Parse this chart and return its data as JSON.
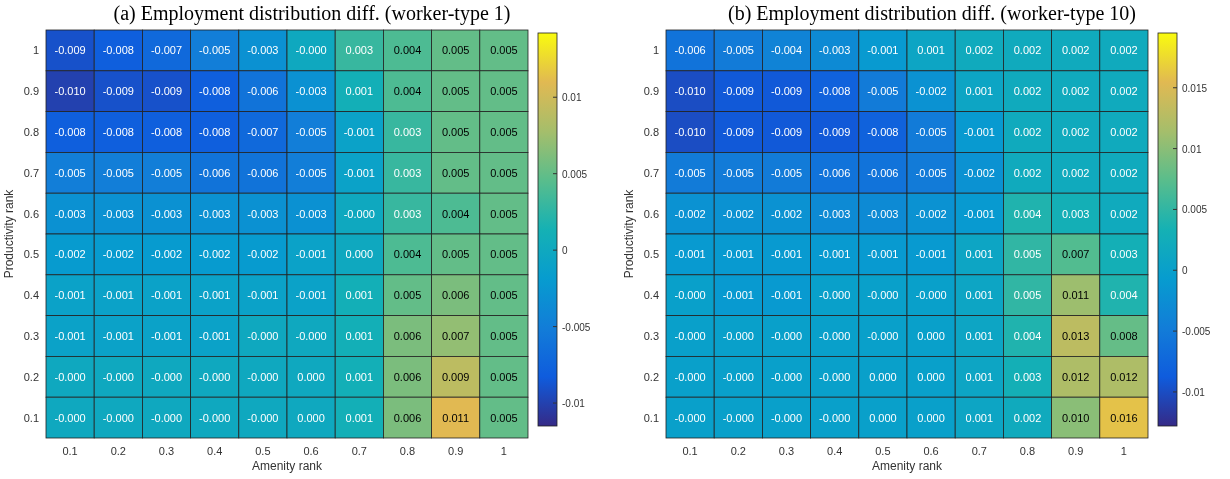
{
  "chart_data": [
    {
      "type": "heatmap",
      "title": "(a) Employment distribution diff. (worker-type 1)",
      "xlabel": "Amenity rank",
      "ylabel": "Productivity rank",
      "categories": [
        "0.1",
        "0.2",
        "0.3",
        "0.4",
        "0.5",
        "0.6",
        "0.7",
        "0.8",
        "0.9",
        "1"
      ],
      "y_categories": [
        "1",
        "0.9",
        "0.8",
        "0.7",
        "0.6",
        "0.5",
        "0.4",
        "0.3",
        "0.2",
        "0.1"
      ],
      "cells": [
        [
          -0.009,
          -0.008,
          -0.007,
          -0.005,
          -0.003,
          0,
          0.003,
          0.004,
          0.005,
          0.005
        ],
        [
          -0.01,
          -0.009,
          -0.009,
          -0.008,
          -0.006,
          -0.003,
          0.001,
          0.004,
          0.005,
          0.005
        ],
        [
          -0.008,
          -0.008,
          -0.008,
          -0.008,
          -0.007,
          -0.005,
          -0.001,
          0.003,
          0.005,
          0.005
        ],
        [
          -0.005,
          -0.005,
          -0.005,
          -0.006,
          -0.006,
          -0.005,
          -0.001,
          0.003,
          0.005,
          0.005
        ],
        [
          -0.003,
          -0.003,
          -0.003,
          -0.003,
          -0.003,
          -0.003,
          0,
          0.003,
          0.004,
          0.005
        ],
        [
          -0.002,
          -0.002,
          -0.002,
          -0.002,
          -0.002,
          -0.001,
          0,
          0.004,
          0.005,
          0.005
        ],
        [
          -0.001,
          -0.001,
          -0.001,
          -0.001,
          -0.001,
          -0.001,
          0.001,
          0.005,
          0.006,
          0.005
        ],
        [
          -0.001,
          -0.001,
          -0.001,
          -0.001,
          0,
          0,
          0.001,
          0.006,
          0.007,
          0.005
        ],
        [
          0,
          0,
          0,
          0,
          0,
          0,
          0.001,
          0.006,
          0.009,
          0.005
        ],
        [
          0,
          0,
          0,
          0,
          0,
          0,
          0.001,
          0.006,
          0.011,
          0.005
        ]
      ],
      "cell_labels": [
        [
          "-0.009",
          "-0.008",
          "-0.007",
          "-0.005",
          "-0.003",
          "-0.000",
          "0.003",
          "0.004",
          "0.005",
          "0.005"
        ],
        [
          "-0.010",
          "-0.009",
          "-0.009",
          "-0.008",
          "-0.006",
          "-0.003",
          "0.001",
          "0.004",
          "0.005",
          "0.005"
        ],
        [
          "-0.008",
          "-0.008",
          "-0.008",
          "-0.008",
          "-0.007",
          "-0.005",
          "-0.001",
          "0.003",
          "0.005",
          "0.005"
        ],
        [
          "-0.005",
          "-0.005",
          "-0.005",
          "-0.006",
          "-0.006",
          "-0.005",
          "-0.001",
          "0.003",
          "0.005",
          "0.005"
        ],
        [
          "-0.003",
          "-0.003",
          "-0.003",
          "-0.003",
          "-0.003",
          "-0.003",
          "-0.000",
          "0.003",
          "0.004",
          "0.005"
        ],
        [
          "-0.002",
          "-0.002",
          "-0.002",
          "-0.002",
          "-0.002",
          "-0.001",
          "0.000",
          "0.004",
          "0.005",
          "0.005"
        ],
        [
          "-0.001",
          "-0.001",
          "-0.001",
          "-0.001",
          "-0.001",
          "-0.001",
          "0.001",
          "0.005",
          "0.006",
          "0.005"
        ],
        [
          "-0.001",
          "-0.001",
          "-0.001",
          "-0.001",
          "-0.000",
          "-0.000",
          "0.001",
          "0.006",
          "0.007",
          "0.005"
        ],
        [
          "-0.000",
          "-0.000",
          "-0.000",
          "-0.000",
          "-0.000",
          "0.000",
          "0.001",
          "0.006",
          "0.009",
          "0.005"
        ],
        [
          "-0.000",
          "-0.000",
          "-0.000",
          "-0.000",
          "-0.000",
          "0.000",
          "0.001",
          "0.006",
          "0.011",
          "0.005"
        ]
      ],
      "clim": [
        -0.0115,
        0.0142
      ],
      "cticks": [
        -0.01,
        -0.005,
        0,
        0.005,
        0.01
      ]
    },
    {
      "type": "heatmap",
      "title": "(b) Employment distribution diff. (worker-type 10)",
      "xlabel": "Amenity rank",
      "ylabel": "Productivity rank",
      "categories": [
        "0.1",
        "0.2",
        "0.3",
        "0.4",
        "0.5",
        "0.6",
        "0.7",
        "0.8",
        "0.9",
        "1"
      ],
      "y_categories": [
        "1",
        "0.9",
        "0.8",
        "0.7",
        "0.6",
        "0.5",
        "0.4",
        "0.3",
        "0.2",
        "0.1"
      ],
      "cells": [
        [
          -0.006,
          -0.005,
          -0.004,
          -0.003,
          -0.001,
          0.001,
          0.002,
          0.002,
          0.002,
          0.002
        ],
        [
          -0.01,
          -0.009,
          -0.009,
          -0.008,
          -0.005,
          -0.002,
          0.001,
          0.002,
          0.002,
          0.002
        ],
        [
          -0.01,
          -0.009,
          -0.009,
          -0.009,
          -0.008,
          -0.005,
          -0.001,
          0.002,
          0.002,
          0.002
        ],
        [
          -0.005,
          -0.005,
          -0.005,
          -0.006,
          -0.006,
          -0.005,
          -0.002,
          0.002,
          0.002,
          0.002
        ],
        [
          -0.002,
          -0.002,
          -0.002,
          -0.003,
          -0.003,
          -0.002,
          -0.001,
          0.004,
          0.003,
          0.002
        ],
        [
          -0.001,
          -0.001,
          -0.001,
          -0.001,
          -0.001,
          -0.001,
          0.001,
          0.005,
          0.007,
          0.003
        ],
        [
          0,
          -0.001,
          -0.001,
          0,
          0,
          0,
          0.001,
          0.005,
          0.011,
          0.004
        ],
        [
          0,
          0,
          0,
          0,
          0,
          0,
          0.001,
          0.004,
          0.013,
          0.008
        ],
        [
          0,
          0,
          0,
          0,
          0,
          0,
          0.001,
          0.003,
          0.012,
          0.012
        ],
        [
          0,
          0,
          0,
          0,
          0,
          0,
          0.001,
          0.002,
          0.01,
          0.016
        ]
      ],
      "cell_labels": [
        [
          "-0.006",
          "-0.005",
          "-0.004",
          "-0.003",
          "-0.001",
          "0.001",
          "0.002",
          "0.002",
          "0.002",
          "0.002"
        ],
        [
          "-0.010",
          "-0.009",
          "-0.009",
          "-0.008",
          "-0.005",
          "-0.002",
          "0.001",
          "0.002",
          "0.002",
          "0.002"
        ],
        [
          "-0.010",
          "-0.009",
          "-0.009",
          "-0.009",
          "-0.008",
          "-0.005",
          "-0.001",
          "0.002",
          "0.002",
          "0.002"
        ],
        [
          "-0.005",
          "-0.005",
          "-0.005",
          "-0.006",
          "-0.006",
          "-0.005",
          "-0.002",
          "0.002",
          "0.002",
          "0.002"
        ],
        [
          "-0.002",
          "-0.002",
          "-0.002",
          "-0.003",
          "-0.003",
          "-0.002",
          "-0.001",
          "0.004",
          "0.003",
          "0.002"
        ],
        [
          "-0.001",
          "-0.001",
          "-0.001",
          "-0.001",
          "-0.001",
          "-0.001",
          "0.001",
          "0.005",
          "0.007",
          "0.003"
        ],
        [
          "-0.000",
          "-0.001",
          "-0.001",
          "-0.000",
          "-0.000",
          "-0.000",
          "0.001",
          "0.005",
          "0.011",
          "0.004"
        ],
        [
          "-0.000",
          "-0.000",
          "-0.000",
          "-0.000",
          "-0.000",
          "0.000",
          "0.001",
          "0.004",
          "0.013",
          "0.008"
        ],
        [
          "-0.000",
          "-0.000",
          "-0.000",
          "-0.000",
          "0.000",
          "0.000",
          "0.001",
          "0.003",
          "0.012",
          "0.012"
        ],
        [
          "-0.000",
          "-0.000",
          "-0.000",
          "-0.000",
          "0.000",
          "0.000",
          "0.001",
          "0.002",
          "0.010",
          "0.016"
        ]
      ],
      "clim": [
        -0.0128,
        0.0195
      ],
      "cticks": [
        -0.01,
        -0.005,
        0,
        0.005,
        0.01,
        0.015
      ]
    }
  ]
}
